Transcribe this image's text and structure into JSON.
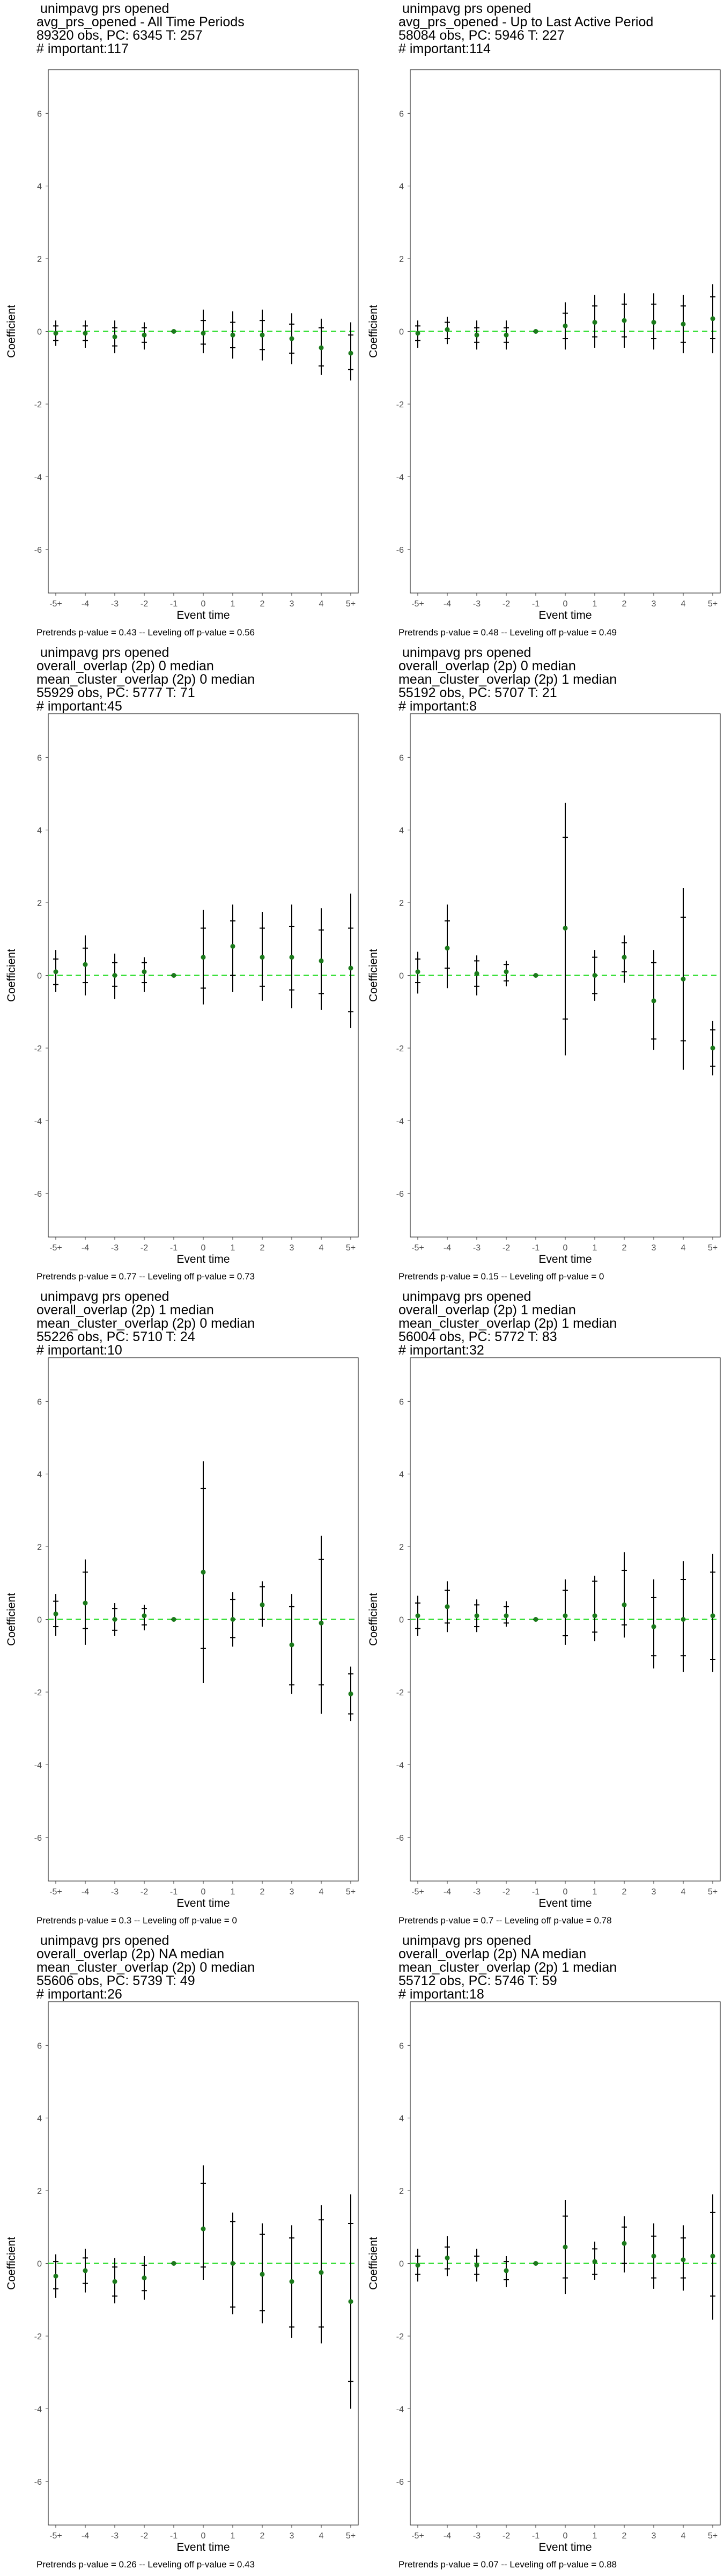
{
  "colors": {
    "point": "#1b7a1b",
    "zero_line": "#33dd33",
    "whisker": "#000000",
    "frame": "#333333"
  },
  "axis": {
    "xlabel": "Event time",
    "ylabel": "Coefficient",
    "x_ticks": [
      "-5+",
      "-4",
      "-3",
      "-2",
      "-1",
      "0",
      "1",
      "2",
      "3",
      "4",
      "5+"
    ],
    "y_ticks": [
      "-6",
      "-4",
      "-2",
      "0",
      "2",
      "4",
      "6"
    ],
    "ylim": [
      -7.2,
      7.2
    ]
  },
  "chart_data": [
    {
      "type": "scatter",
      "title_lines": [
        " unimpavg prs opened",
        "avg_prs_opened - All Time Periods",
        "89320 obs, PC: 6345 T: 257",
        "# important:117"
      ],
      "footer": "Pretrends p-value = 0.43 -- Leveling off p-value = 0.56",
      "x": [
        "-5+",
        "-4",
        "-3",
        "-2",
        "-1",
        "0",
        "1",
        "2",
        "3",
        "4",
        "5+"
      ],
      "y": [
        -0.05,
        -0.05,
        -0.15,
        -0.1,
        0,
        -0.05,
        -0.1,
        -0.1,
        -0.2,
        -0.45,
        -0.6
      ],
      "ci_inner": [
        [
          -0.25,
          0.15
        ],
        [
          -0.25,
          0.15
        ],
        [
          -0.4,
          0.1
        ],
        [
          -0.3,
          0.1
        ],
        [
          0,
          0
        ],
        [
          -0.35,
          0.3
        ],
        [
          -0.45,
          0.25
        ],
        [
          -0.5,
          0.3
        ],
        [
          -0.6,
          0.2
        ],
        [
          -0.95,
          0.1
        ],
        [
          -1.05,
          -0.1
        ]
      ],
      "ci_outer": [
        [
          -0.4,
          0.3
        ],
        [
          -0.45,
          0.3
        ],
        [
          -0.6,
          0.3
        ],
        [
          -0.5,
          0.25
        ],
        [
          0,
          0
        ],
        [
          -0.6,
          0.6
        ],
        [
          -0.75,
          0.55
        ],
        [
          -0.8,
          0.6
        ],
        [
          -0.9,
          0.5
        ],
        [
          -1.2,
          0.35
        ],
        [
          -1.35,
          0.25
        ]
      ]
    },
    {
      "type": "scatter",
      "title_lines": [
        " unimpavg prs opened",
        "avg_prs_opened - Up to Last Active Period",
        "58084 obs, PC: 5946 T: 227",
        "# important:114"
      ],
      "footer": "Pretrends p-value = 0.48 -- Leveling off p-value = 0.49",
      "x": [
        "-5+",
        "-4",
        "-3",
        "-2",
        "-1",
        "0",
        "1",
        "2",
        "3",
        "4",
        "5+"
      ],
      "y": [
        -0.05,
        0.05,
        -0.1,
        -0.1,
        0,
        0.15,
        0.25,
        0.3,
        0.25,
        0.2,
        0.35
      ],
      "ci_inner": [
        [
          -0.25,
          0.15
        ],
        [
          -0.2,
          0.25
        ],
        [
          -0.3,
          0.1
        ],
        [
          -0.3,
          0.1
        ],
        [
          0,
          0
        ],
        [
          -0.2,
          0.5
        ],
        [
          -0.15,
          0.7
        ],
        [
          -0.15,
          0.75
        ],
        [
          -0.2,
          0.75
        ],
        [
          -0.3,
          0.7
        ],
        [
          -0.2,
          0.95
        ]
      ],
      "ci_outer": [
        [
          -0.45,
          0.3
        ],
        [
          -0.35,
          0.4
        ],
        [
          -0.5,
          0.3
        ],
        [
          -0.5,
          0.3
        ],
        [
          0,
          0
        ],
        [
          -0.5,
          0.8
        ],
        [
          -0.45,
          1.0
        ],
        [
          -0.45,
          1.05
        ],
        [
          -0.5,
          1.05
        ],
        [
          -0.6,
          1.0
        ],
        [
          -0.6,
          1.3
        ]
      ]
    },
    {
      "type": "scatter",
      "title_lines": [
        " unimpavg prs opened",
        "overall_overlap (2p) 0 median",
        "mean_cluster_overlap (2p) 0 median",
        "55929 obs, PC: 5777 T: 71",
        "# important:45"
      ],
      "footer": "Pretrends p-value = 0.77 -- Leveling off p-value = 0.73",
      "x": [
        "-5+",
        "-4",
        "-3",
        "-2",
        "-1",
        "0",
        "1",
        "2",
        "3",
        "4",
        "5+"
      ],
      "y": [
        0.1,
        0.3,
        0.0,
        0.1,
        0,
        0.5,
        0.8,
        0.5,
        0.5,
        0.4,
        0.2
      ],
      "ci_inner": [
        [
          -0.25,
          0.45
        ],
        [
          -0.2,
          0.75
        ],
        [
          -0.3,
          0.35
        ],
        [
          -0.2,
          0.35
        ],
        [
          0,
          0
        ],
        [
          -0.35,
          1.3
        ],
        [
          0.0,
          1.5
        ],
        [
          -0.3,
          1.3
        ],
        [
          -0.4,
          1.35
        ],
        [
          -0.5,
          1.25
        ],
        [
          -1.0,
          1.3
        ]
      ],
      "ci_outer": [
        [
          -0.45,
          0.7
        ],
        [
          -0.55,
          1.1
        ],
        [
          -0.65,
          0.6
        ],
        [
          -0.45,
          0.5
        ],
        [
          0,
          0
        ],
        [
          -0.8,
          1.8
        ],
        [
          -0.45,
          1.95
        ],
        [
          -0.7,
          1.75
        ],
        [
          -0.9,
          1.95
        ],
        [
          -0.95,
          1.85
        ],
        [
          -1.45,
          2.25
        ]
      ]
    },
    {
      "type": "scatter",
      "title_lines": [
        " unimpavg prs opened",
        "overall_overlap (2p) 0 median",
        "mean_cluster_overlap (2p) 1 median",
        "55192 obs, PC: 5707 T: 21",
        "# important:8"
      ],
      "footer": "Pretrends p-value = 0.15 -- Leveling off p-value = 0",
      "x": [
        "-5+",
        "-4",
        "-3",
        "-2",
        "-1",
        "0",
        "1",
        "2",
        "3",
        "4",
        "5+"
      ],
      "y": [
        0.1,
        0.75,
        0.05,
        0.1,
        0,
        1.3,
        0.0,
        0.5,
        -0.7,
        -0.1,
        -2.0
      ],
      "ci_inner": [
        [
          -0.2,
          0.45
        ],
        [
          0.2,
          1.5
        ],
        [
          -0.3,
          0.4
        ],
        [
          -0.15,
          0.3
        ],
        [
          0,
          0
        ],
        [
          -1.2,
          3.8
        ],
        [
          -0.5,
          0.5
        ],
        [
          0.1,
          0.9
        ],
        [
          -1.75,
          0.35
        ],
        [
          -1.8,
          1.6
        ],
        [
          -2.5,
          -1.5
        ]
      ],
      "ci_outer": [
        [
          -0.5,
          0.65
        ],
        [
          -0.35,
          1.95
        ],
        [
          -0.55,
          0.55
        ],
        [
          -0.3,
          0.4
        ],
        [
          0,
          0
        ],
        [
          -2.2,
          4.75
        ],
        [
          -0.7,
          0.7
        ],
        [
          -0.2,
          1.1
        ],
        [
          -2.05,
          0.7
        ],
        [
          -2.6,
          2.4
        ],
        [
          -2.75,
          -1.25
        ]
      ]
    },
    {
      "type": "scatter",
      "title_lines": [
        " unimpavg prs opened",
        "overall_overlap (2p) 1 median",
        "mean_cluster_overlap (2p) 0 median",
        "55226 obs, PC: 5710 T: 24",
        "# important:10"
      ],
      "footer": "Pretrends p-value = 0.3 -- Leveling off p-value = 0",
      "x": [
        "-5+",
        "-4",
        "-3",
        "-2",
        "-1",
        "0",
        "1",
        "2",
        "3",
        "4",
        "5+"
      ],
      "y": [
        0.15,
        0.45,
        0.0,
        0.1,
        0,
        1.3,
        0.0,
        0.4,
        -0.7,
        -0.1,
        -2.05
      ],
      "ci_inner": [
        [
          -0.2,
          0.5
        ],
        [
          -0.25,
          1.3
        ],
        [
          -0.3,
          0.3
        ],
        [
          -0.15,
          0.3
        ],
        [
          0,
          0
        ],
        [
          -0.8,
          3.6
        ],
        [
          -0.5,
          0.55
        ],
        [
          0.0,
          0.9
        ],
        [
          -1.8,
          0.35
        ],
        [
          -1.8,
          1.65
        ],
        [
          -2.6,
          -1.5
        ]
      ],
      "ci_outer": [
        [
          -0.45,
          0.7
        ],
        [
          -0.7,
          1.65
        ],
        [
          -0.45,
          0.45
        ],
        [
          -0.3,
          0.4
        ],
        [
          0,
          0
        ],
        [
          -1.75,
          4.35
        ],
        [
          -0.75,
          0.75
        ],
        [
          -0.2,
          1.05
        ],
        [
          -2.05,
          0.7
        ],
        [
          -2.6,
          2.3
        ],
        [
          -2.8,
          -1.3
        ]
      ]
    },
    {
      "type": "scatter",
      "title_lines": [
        " unimpavg prs opened",
        "overall_overlap (2p) 1 median",
        "mean_cluster_overlap (2p) 1 median",
        "56004 obs, PC: 5772 T: 83",
        "# important:32"
      ],
      "footer": "Pretrends p-value = 0.7 -- Leveling off p-value = 0.78",
      "x": [
        "-5+",
        "-4",
        "-3",
        "-2",
        "-1",
        "0",
        "1",
        "2",
        "3",
        "4",
        "5+"
      ],
      "y": [
        0.1,
        0.35,
        0.1,
        0.1,
        0,
        0.1,
        0.1,
        0.4,
        -0.2,
        0.0,
        0.1
      ],
      "ci_inner": [
        [
          -0.25,
          0.45
        ],
        [
          -0.1,
          0.8
        ],
        [
          -0.2,
          0.4
        ],
        [
          -0.1,
          0.35
        ],
        [
          0,
          0
        ],
        [
          -0.45,
          0.8
        ],
        [
          -0.35,
          1.05
        ],
        [
          -0.15,
          1.35
        ],
        [
          -1.0,
          0.6
        ],
        [
          -1.0,
          1.1
        ],
        [
          -1.1,
          1.3
        ]
      ],
      "ci_outer": [
        [
          -0.45,
          0.65
        ],
        [
          -0.35,
          1.05
        ],
        [
          -0.35,
          0.55
        ],
        [
          -0.2,
          0.5
        ],
        [
          0,
          0
        ],
        [
          -0.7,
          1.1
        ],
        [
          -0.6,
          1.2
        ],
        [
          -0.5,
          1.85
        ],
        [
          -1.35,
          1.1
        ],
        [
          -1.45,
          1.6
        ],
        [
          -1.45,
          1.8
        ]
      ]
    },
    {
      "type": "scatter",
      "title_lines": [
        " unimpavg prs opened",
        "overall_overlap (2p) NA median",
        "mean_cluster_overlap (2p) 0 median",
        "55606 obs, PC: 5739 T: 49",
        "# important:26"
      ],
      "footer": "Pretrends p-value = 0.26 -- Leveling off p-value = 0.43",
      "x": [
        "-5+",
        "-4",
        "-3",
        "-2",
        "-1",
        "0",
        "1",
        "2",
        "3",
        "4",
        "5+"
      ],
      "y": [
        -0.35,
        -0.2,
        -0.5,
        -0.4,
        0,
        0.95,
        0.0,
        -0.3,
        -0.5,
        -0.25,
        -1.05
      ],
      "ci_inner": [
        [
          -0.7,
          0.05
        ],
        [
          -0.55,
          0.15
        ],
        [
          -0.9,
          -0.1
        ],
        [
          -0.75,
          -0.05
        ],
        [
          0,
          0
        ],
        [
          -0.1,
          2.2
        ],
        [
          -1.2,
          1.15
        ],
        [
          -1.3,
          0.8
        ],
        [
          -1.75,
          0.7
        ],
        [
          -1.75,
          1.2
        ],
        [
          -3.25,
          1.1
        ]
      ],
      "ci_outer": [
        [
          -0.95,
          0.25
        ],
        [
          -0.8,
          0.4
        ],
        [
          -1.1,
          0.15
        ],
        [
          -1.0,
          0.2
        ],
        [
          0,
          0
        ],
        [
          -0.45,
          2.7
        ],
        [
          -1.4,
          1.4
        ],
        [
          -1.65,
          1.1
        ],
        [
          -2.05,
          1.05
        ],
        [
          -2.2,
          1.6
        ],
        [
          -4.0,
          1.9
        ]
      ]
    },
    {
      "type": "scatter",
      "title_lines": [
        " unimpavg prs opened",
        "overall_overlap (2p) NA median",
        "mean_cluster_overlap (2p) 1 median",
        "55712 obs, PC: 5746 T: 59",
        "# important:18"
      ],
      "footer": "Pretrends p-value = 0.07 -- Leveling off p-value = 0.88",
      "x": [
        "-5+",
        "-4",
        "-3",
        "-2",
        "-1",
        "0",
        "1",
        "2",
        "3",
        "4",
        "5+"
      ],
      "y": [
        -0.05,
        0.15,
        -0.05,
        -0.2,
        0,
        0.45,
        0.05,
        0.55,
        0.2,
        0.1,
        0.2
      ],
      "ci_inner": [
        [
          -0.3,
          0.2
        ],
        [
          -0.15,
          0.45
        ],
        [
          -0.3,
          0.2
        ],
        [
          -0.45,
          0.05
        ],
        [
          0,
          0
        ],
        [
          -0.4,
          1.3
        ],
        [
          -0.3,
          0.4
        ],
        [
          0.0,
          1.0
        ],
        [
          -0.4,
          0.75
        ],
        [
          -0.4,
          0.7
        ],
        [
          -0.9,
          1.4
        ]
      ],
      "ci_outer": [
        [
          -0.5,
          0.4
        ],
        [
          -0.35,
          0.75
        ],
        [
          -0.5,
          0.4
        ],
        [
          -0.65,
          0.2
        ],
        [
          0,
          0
        ],
        [
          -0.85,
          1.75
        ],
        [
          -0.45,
          0.6
        ],
        [
          -0.25,
          1.3
        ],
        [
          -0.7,
          1.1
        ],
        [
          -0.75,
          1.05
        ],
        [
          -1.55,
          1.9
        ]
      ]
    }
  ]
}
